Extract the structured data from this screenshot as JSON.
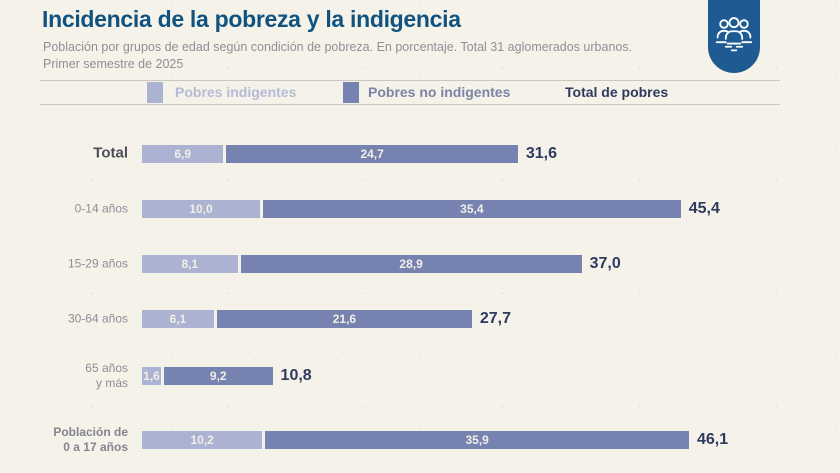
{
  "header": {
    "title": "Incidencia de la pobreza y la indigencia",
    "subtitle_line1": "Población por grupos de edad según condición de pobreza. En porcentaje. Total 31 aglomerados urbanos.",
    "subtitle_line2": "Primer semestre de 2025"
  },
  "brand": {
    "icon": "people-group-icon",
    "badge_color": "#1d5b92"
  },
  "legend": {
    "items": [
      {
        "label": "Pobres indigentes",
        "swatch_color": "#abb2d2",
        "text_color": "#b5bbd7"
      },
      {
        "label": "Pobres no indigentes",
        "swatch_color": "#7683b1",
        "text_color": "#7b84a7"
      },
      {
        "label": "Total de pobres",
        "text_color": "#2e3a5f"
      }
    ]
  },
  "chart_data": {
    "type": "bar",
    "orientation": "horizontal-stacked",
    "unit": "percent",
    "xlim": [
      0,
      50
    ],
    "grid": false,
    "legend_position": "top",
    "series": [
      {
        "name": "Pobres indigentes",
        "color": "#abb2d2"
      },
      {
        "name": "Pobres no indigentes",
        "color": "#7683b1"
      }
    ],
    "categories": [
      "Total",
      "0-14 años",
      "15-29 años",
      "30-64 años",
      "65 años y más",
      "Población de 0 a 17 años"
    ],
    "rows": [
      {
        "label_lines": [
          "Total"
        ],
        "label_style": "big",
        "values": [
          6.9,
          24.7
        ],
        "value_labels": [
          "6,9",
          "24,7"
        ],
        "total": 31.6,
        "total_label": "31,6"
      },
      {
        "label_lines": [
          "0-14 años"
        ],
        "label_style": "normal",
        "values": [
          10.0,
          35.4
        ],
        "value_labels": [
          "10,0",
          "35,4"
        ],
        "total": 45.4,
        "total_label": "45,4"
      },
      {
        "label_lines": [
          "15-29 años"
        ],
        "label_style": "normal",
        "values": [
          8.1,
          28.9
        ],
        "value_labels": [
          "8,1",
          "28,9"
        ],
        "total": 37.0,
        "total_label": "37,0"
      },
      {
        "label_lines": [
          "30-64 años"
        ],
        "label_style": "normal",
        "values": [
          6.1,
          21.6
        ],
        "value_labels": [
          "6,1",
          "21,6"
        ],
        "total": 27.7,
        "total_label": "27,7"
      },
      {
        "label_lines": [
          "65 años",
          "y más"
        ],
        "label_style": "normal",
        "values": [
          1.6,
          9.2
        ],
        "value_labels": [
          "1,6",
          "9,2"
        ],
        "total": 10.8,
        "total_label": "10,8"
      },
      {
        "label_lines": [
          "Población de",
          "0 a 17 años"
        ],
        "label_style": "bold",
        "values": [
          10.2,
          35.9
        ],
        "value_labels": [
          "10,2",
          "35,9"
        ],
        "total": 46.1,
        "total_label": "46,1"
      }
    ],
    "colors": {
      "indigentes": "#abb2d2",
      "no_indigentes": "#7683b1",
      "total_text": "#2e3a5f"
    }
  }
}
